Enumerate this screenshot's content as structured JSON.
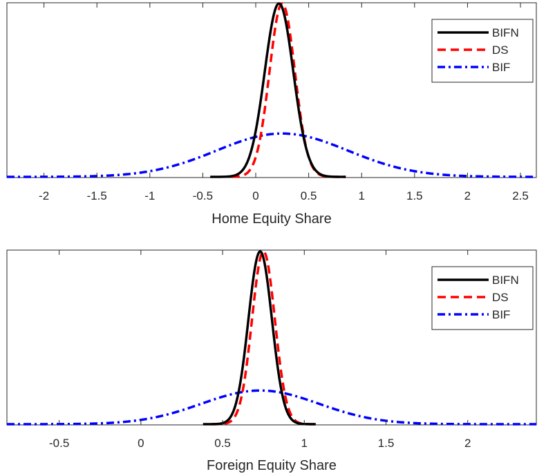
{
  "chart_data": [
    {
      "type": "line",
      "title": "",
      "xlabel": "Home Equity Share",
      "ylabel": "",
      "xlim": [
        -2.35,
        2.65
      ],
      "xticks": [
        -2,
        -1.5,
        -1,
        -0.5,
        0,
        0.5,
        1,
        1.5,
        2,
        2.5
      ],
      "xtick_labels": [
        "-2",
        "-1.5",
        "-1",
        "-0.5",
        "0",
        "0.5",
        "1",
        "1.5",
        "2",
        "2.5"
      ],
      "yticks_labels_visible": false,
      "grid": false,
      "legend_position": "top-right",
      "series": [
        {
          "name": "BIFN",
          "style": "solid",
          "color": "#000000",
          "mean": 0.22,
          "sd": 0.135,
          "peak": 1.0,
          "x_range": [
            -0.43,
            0.85
          ]
        },
        {
          "name": "DS",
          "style": "dashed",
          "color": "#ff0000",
          "mean": 0.25,
          "sd": 0.12,
          "peak": 1.0,
          "x_range": [
            -0.23,
            0.85
          ]
        },
        {
          "name": "BIF",
          "style": "dashdot",
          "color": "#0000ff",
          "mean": 0.25,
          "sd": 0.62,
          "peak": 0.25,
          "x_range": [
            -2.35,
            2.65
          ]
        }
      ]
    },
    {
      "type": "line",
      "title": "",
      "xlabel": "Foreign Equity Share",
      "ylabel": "",
      "xlim": [
        -0.82,
        2.42
      ],
      "xticks": [
        -0.5,
        0,
        0.5,
        1,
        1.5,
        2
      ],
      "xtick_labels": [
        "-0.5",
        "0",
        "0.5",
        "1",
        "1.5",
        "2"
      ],
      "yticks_labels_visible": false,
      "grid": false,
      "legend_position": "top-right",
      "series": [
        {
          "name": "BIFN",
          "style": "solid",
          "color": "#000000",
          "mean": 0.73,
          "sd": 0.072,
          "peak": 1.0,
          "x_range": [
            0.38,
            1.07
          ]
        },
        {
          "name": "DS",
          "style": "dashed",
          "color": "#ff0000",
          "mean": 0.75,
          "sd": 0.07,
          "peak": 1.0,
          "x_range": [
            0.43,
            1.07
          ]
        },
        {
          "name": "BIF",
          "style": "dashdot",
          "color": "#0000ff",
          "mean": 0.73,
          "sd": 0.36,
          "peak": 0.195,
          "x_range": [
            -0.82,
            2.42
          ]
        }
      ]
    }
  ]
}
